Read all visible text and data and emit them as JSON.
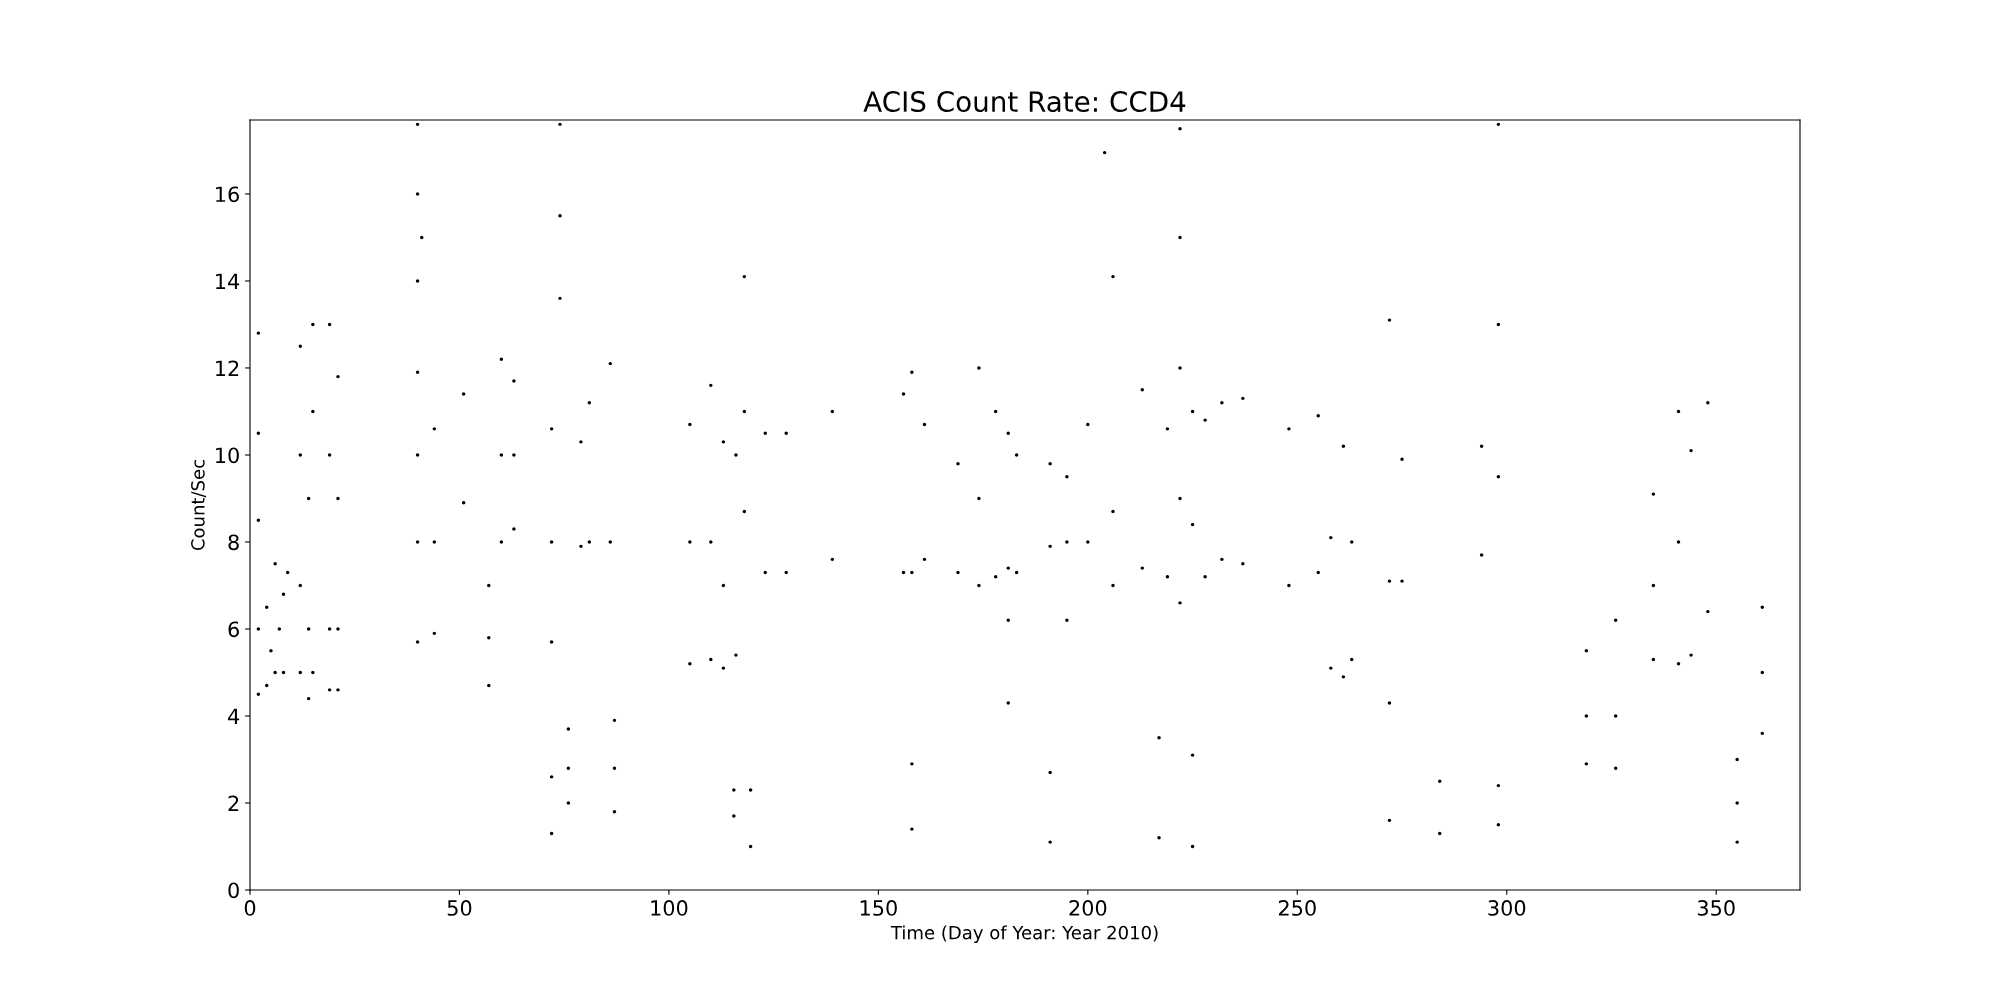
{
  "chart_data": {
    "type": "scatter",
    "title": "ACIS Count Rate: CCD4",
    "xlabel": "Time (Day of Year: Year 2010)",
    "ylabel": "Count/Sec",
    "xlim": [
      0,
      370
    ],
    "xticks": [
      0,
      50,
      100,
      150,
      200,
      250,
      300,
      350
    ],
    "ylim": [
      0,
      17.7
    ],
    "yticks": [
      0,
      2,
      4,
      6,
      8,
      10,
      12,
      14,
      16
    ],
    "marker": "circle",
    "grid": false,
    "legend": false,
    "series": [
      {
        "color": "#000000",
        "x": [
          2,
          2,
          2,
          2,
          2,
          4,
          5,
          6,
          7,
          8,
          9,
          4,
          6,
          8,
          12,
          12,
          12,
          12,
          14,
          14,
          14,
          15,
          15,
          15,
          19,
          19,
          19,
          19,
          21,
          21,
          21,
          21,
          40,
          40,
          40,
          40,
          40,
          40,
          40,
          41,
          44,
          44,
          44,
          51,
          51,
          57,
          57,
          57,
          60,
          60,
          60,
          63,
          63,
          63,
          72,
          72,
          72,
          72,
          72,
          74,
          74,
          74,
          76,
          76,
          76,
          79,
          79,
          81,
          81,
          86,
          86,
          87,
          87,
          87,
          105,
          105,
          105,
          110,
          110,
          110,
          113,
          113,
          113,
          116,
          116,
          118,
          118,
          118,
          115.5,
          115.5,
          119.5,
          119.5,
          123,
          123,
          128,
          128,
          139,
          139,
          156,
          156,
          158,
          158,
          158,
          158,
          161,
          161,
          169,
          169,
          174,
          174,
          174,
          178,
          178,
          181,
          181,
          181,
          181,
          183,
          183,
          191,
          191,
          191,
          191,
          195,
          195,
          195,
          200,
          200,
          204,
          206,
          206,
          206,
          213,
          213,
          217,
          217,
          219,
          219,
          222,
          222,
          222,
          222,
          222,
          225,
          225,
          225,
          225,
          228,
          228,
          232,
          232,
          237,
          237,
          248,
          248,
          255,
          255,
          258,
          258,
          261,
          261,
          263,
          263,
          272,
          272,
          272,
          272,
          275,
          275,
          284,
          284,
          294,
          294,
          298,
          298,
          298,
          298,
          298,
          319,
          319,
          319,
          326,
          326,
          326,
          335,
          335,
          335,
          341,
          341,
          341,
          344,
          344,
          348,
          348,
          355,
          355,
          355,
          361,
          361,
          361
        ],
        "values": [
          4.5,
          6,
          8.5,
          10.5,
          12.8,
          4.7,
          5.5,
          7.5,
          6,
          5,
          7.3,
          6.5,
          5,
          6.8,
          5,
          7,
          10,
          12.5,
          4.4,
          6,
          9,
          13,
          11,
          5,
          4.6,
          6,
          10,
          13,
          4.6,
          6,
          9,
          11.8,
          5.7,
          8,
          10,
          11.9,
          14,
          16,
          17.6,
          15,
          5.9,
          8,
          10.6,
          8.9,
          11.4,
          4.7,
          5.8,
          7,
          8,
          10,
          12.2,
          8.3,
          10,
          11.7,
          1.3,
          2.6,
          5.7,
          8,
          10.6,
          13.6,
          15.5,
          17.6,
          2,
          2.8,
          3.7,
          7.9,
          10.3,
          8,
          11.2,
          8,
          12.1,
          1.8,
          2.8,
          3.9,
          5.2,
          8,
          10.7,
          5.3,
          8,
          11.6,
          5.1,
          7,
          10.3,
          5.4,
          10,
          8.7,
          11,
          14.1,
          1.7,
          2.3,
          1,
          2.3,
          7.3,
          10.5,
          7.3,
          10.5,
          7.6,
          11,
          7.3,
          11.4,
          1.4,
          2.9,
          7.3,
          11.9,
          7.6,
          10.7,
          7.3,
          9.8,
          7,
          9,
          12,
          7.2,
          11,
          4.3,
          6.2,
          7.4,
          10.5,
          7.3,
          10,
          1.1,
          2.7,
          7.9,
          9.8,
          6.2,
          8,
          9.5,
          8,
          10.7,
          16.95,
          7,
          8.7,
          14.1,
          7.4,
          11.5,
          1.2,
          3.5,
          7.2,
          10.6,
          6.6,
          9,
          12,
          15,
          17.5,
          1,
          3.1,
          8.4,
          11,
          7.2,
          10.8,
          7.6,
          11.2,
          7.5,
          11.3,
          7,
          10.6,
          7.3,
          10.9,
          5.1,
          8.1,
          4.9,
          10.2,
          5.3,
          8,
          1.6,
          4.3,
          7.1,
          13.1,
          7.1,
          9.9,
          1.3,
          2.5,
          7.7,
          10.2,
          1.5,
          2.4,
          9.5,
          13,
          17.6,
          2.9,
          4,
          5.5,
          2.8,
          4,
          6.2,
          5.3,
          7,
          9.1,
          5.2,
          8,
          11,
          5.4,
          10.1,
          6.4,
          11.2,
          1.1,
          2,
          3,
          3.6,
          5,
          6.5
        ]
      }
    ]
  }
}
